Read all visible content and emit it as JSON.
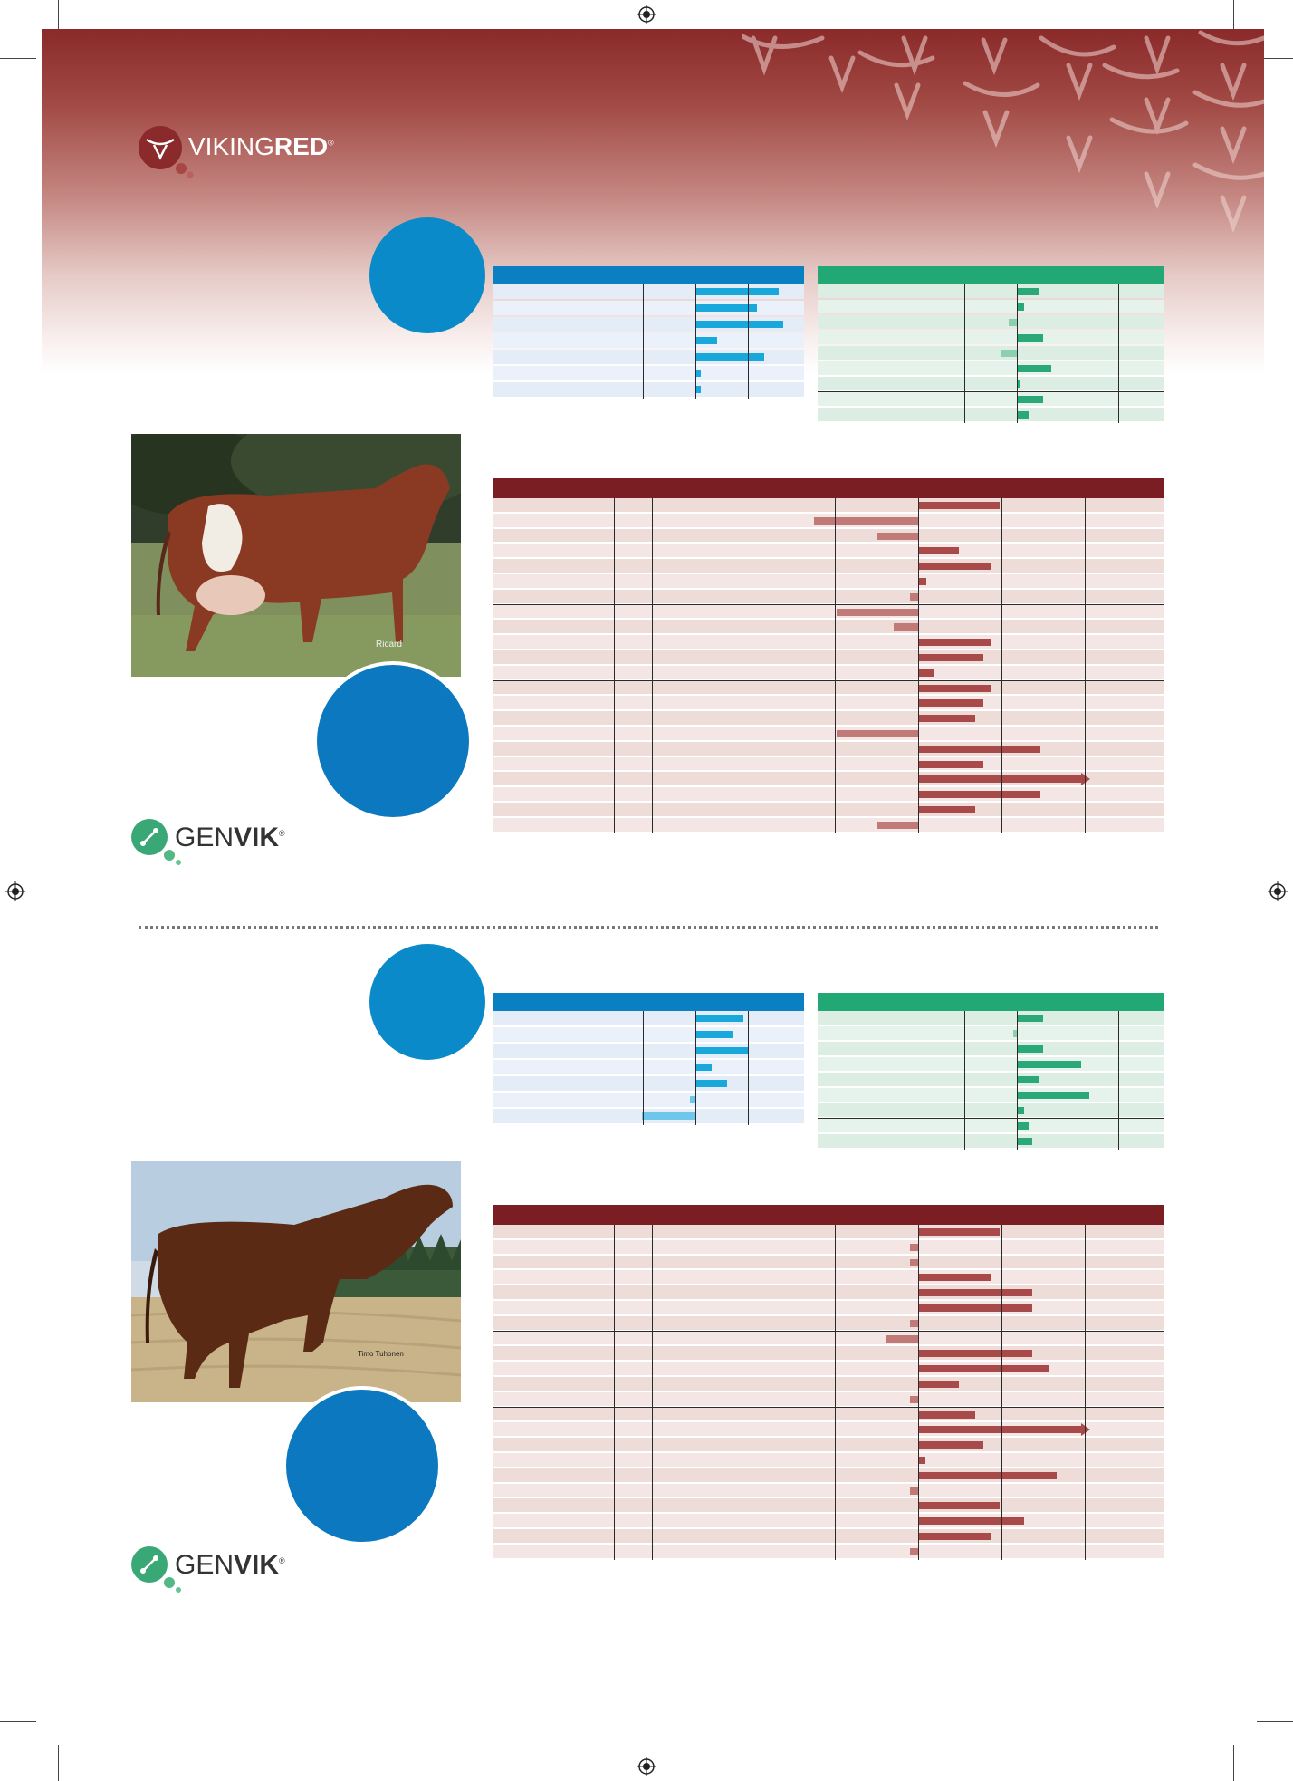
{
  "brand": {
    "name_part1": "VIKING",
    "name_part2": "RED",
    "reg_mark": "®",
    "color_primary": "#8b2a2a",
    "color_light": "#ffffff"
  },
  "partner": {
    "name_part1": "GEN",
    "name_part2": "VIK",
    "reg_mark": "®",
    "color_green": "#3aa876"
  },
  "colors": {
    "blue_header": "#0a7fc2",
    "green_header": "#22a874",
    "maroon_header": "#7a1e24",
    "blue_bar": "#18a8dc",
    "green_bar": "#2aa877",
    "maroon_bar": "#a84a4a",
    "maroon_bar_light": "#c07a78",
    "blue_circle": "#0a8ac8",
    "blue_circle_dark": "#0b78bf"
  },
  "photos": {
    "top_caption": "Ricard",
    "bottom_caption": "Timo Tuhonen"
  },
  "sections": [
    {
      "id": "top",
      "blue_panel": {
        "values": [
          0.78,
          0.58,
          0.82,
          0.2,
          0.64,
          0.05,
          0.05
        ]
      },
      "green_panel": {
        "values": [
          0.6,
          0.2,
          -0.22,
          0.7,
          -0.42,
          0.9,
          0.1,
          0.7,
          0.3
        ]
      },
      "maroon_panel": {
        "values": [
          0.5,
          -0.64,
          -0.25,
          0.25,
          0.45,
          0.05,
          -0.05,
          -0.5,
          -0.15,
          0.45,
          0.4,
          0.1,
          0.45,
          0.4,
          0.35,
          -0.5,
          0.75,
          0.4,
          1.0,
          0.75,
          0.35,
          -0.25
        ],
        "group_breaks": [
          7,
          12
        ]
      }
    },
    {
      "id": "bottom",
      "blue_panel": {
        "values": [
          0.45,
          0.35,
          0.5,
          0.15,
          0.3,
          -0.05,
          -0.5
        ]
      },
      "green_panel": {
        "values": [
          0.7,
          -0.1,
          0.7,
          1.7,
          0.6,
          1.9,
          0.2,
          0.3,
          0.4
        ]
      },
      "maroon_panel": {
        "values": [
          0.5,
          -0.05,
          -0.05,
          0.45,
          0.7,
          0.7,
          -0.05,
          -0.2,
          0.7,
          0.8,
          0.25,
          -0.05,
          0.35,
          1.0,
          0.4,
          0.0,
          0.85,
          -0.05,
          0.5,
          0.65,
          0.45,
          -0.05
        ],
        "group_breaks": [
          7,
          12
        ]
      }
    }
  ]
}
